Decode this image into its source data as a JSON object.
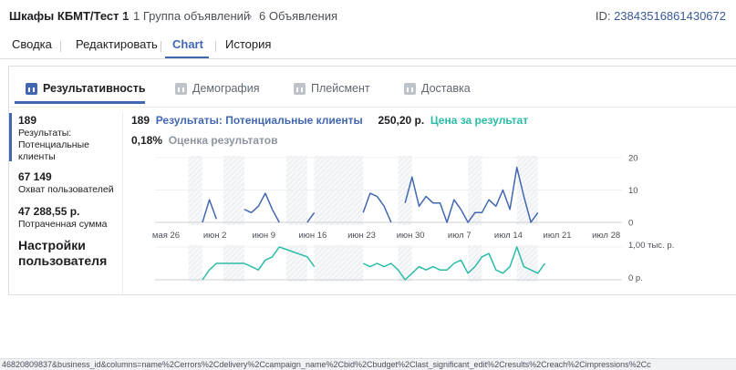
{
  "breadcrumb": {
    "root": "Шкафы КБМТ/Тест 1",
    "items": [
      "1 Группа объявлений",
      "6 Объявления"
    ]
  },
  "id_label": "ID:",
  "id_value": "23843516861430672",
  "tabs": [
    "Сводка",
    "Редактировать",
    "Chart",
    "История"
  ],
  "active_tab": "Chart",
  "subtabs": [
    {
      "label": "Результативность",
      "icon": "bar-chart-icon"
    },
    {
      "label": "Демография",
      "icon": "demography-icon"
    },
    {
      "label": "Плейсмент",
      "icon": "placement-icon"
    },
    {
      "label": "Доставка",
      "icon": "delivery-icon"
    }
  ],
  "metrics": [
    {
      "value": "189",
      "label": "Результаты: Потенциальные клиенты"
    },
    {
      "value": "67 149",
      "label": "Охват пользователей"
    },
    {
      "value": "47 288,55 р.",
      "label": "Потраченная сумма"
    }
  ],
  "settings_label": "Настройки пользователя",
  "legend": {
    "results_value": "189",
    "results_label": "Результаты: Потенциальные клиенты",
    "cost_value": "250,20 р.",
    "cost_label": "Цена за результат",
    "rate_value": "0,18%",
    "rate_label": "Оценка результатов"
  },
  "colors": {
    "blue": "#4267b2",
    "teal": "#2abba7",
    "accent": "#385898"
  },
  "url_text": "46820809837&business_id&columns=name%2Cerrors%2Cdelivery%2Ccampaign_name%2Cbid%2Cbudget%2Clast_significant_edit%2Cresults%2Creach%2Cimpressions%2Cc",
  "chart_data": {
    "type": "line",
    "x_ticks": [
      "мая 26",
      "июн 2",
      "июн 9",
      "июн 16",
      "июн 23",
      "июн 30",
      "июл 7",
      "июл 14",
      "июл 21",
      "июл 28"
    ],
    "y1_ticks": [
      "20",
      "10",
      "0"
    ],
    "y2_ticks": [
      "1,00 тыс. р.",
      "0 р."
    ],
    "days": 66,
    "results_series": [
      null,
      null,
      null,
      null,
      null,
      null,
      0,
      7,
      1,
      null,
      null,
      null,
      4,
      3,
      5,
      9,
      4,
      0,
      null,
      null,
      null,
      0,
      3,
      null,
      null,
      null,
      null,
      null,
      null,
      null,
      null,
      null,
      null,
      null,
      null,
      null,
      null,
      null,
      null,
      null,
      null,
      null,
      null,
      null,
      null,
      null,
      null,
      null,
      null,
      null,
      null,
      null,
      null,
      null,
      null,
      null,
      null,
      null,
      null,
      null,
      null,
      null,
      null,
      null,
      null,
      null
    ],
    "results_series_b": [
      [
        29,
        3
      ],
      [
        30,
        9
      ],
      [
        31,
        8
      ],
      [
        32,
        5
      ],
      [
        33,
        0
      ],
      null,
      [
        35,
        6
      ],
      [
        36,
        14
      ],
      [
        37,
        5
      ],
      [
        38,
        8
      ],
      [
        39,
        6
      ],
      [
        40,
        6
      ],
      [
        41,
        0
      ],
      [
        42,
        7
      ],
      [
        43,
        4
      ],
      [
        44,
        0
      ],
      [
        45,
        3
      ],
      [
        46,
        3
      ],
      [
        47,
        7
      ],
      [
        48,
        5
      ],
      [
        49,
        10
      ],
      [
        50,
        4
      ],
      [
        51,
        17
      ],
      [
        52,
        8
      ],
      [
        53,
        0
      ],
      [
        54,
        3
      ]
    ],
    "cost_series_a": [
      [
        6,
        0
      ],
      [
        7,
        0.3
      ],
      [
        8,
        0.5
      ],
      [
        12,
        0.5
      ],
      [
        13,
        0.4
      ],
      [
        14,
        0.3
      ],
      [
        15,
        0.6
      ],
      [
        16,
        0.7
      ],
      [
        17,
        1.0
      ],
      [
        21,
        0.7
      ],
      [
        22,
        0.4
      ]
    ],
    "cost_series_b": [
      [
        29,
        0.5
      ],
      [
        30,
        0.4
      ],
      [
        31,
        0.5
      ],
      [
        32,
        0.4
      ],
      [
        33,
        0.5
      ],
      [
        34,
        0.3
      ],
      [
        35,
        0.0
      ],
      [
        37,
        0.4
      ],
      [
        38,
        0.3
      ],
      [
        39,
        0.4
      ],
      [
        40,
        0.3
      ],
      [
        41,
        0.3
      ],
      [
        42,
        0.5
      ],
      [
        43,
        0.6
      ],
      [
        44,
        0.2
      ],
      [
        45,
        0.4
      ],
      [
        46,
        0.7
      ],
      [
        47,
        0.8
      ],
      [
        48,
        0.3
      ],
      [
        49,
        0.2
      ],
      [
        50,
        0.4
      ],
      [
        51,
        1.0
      ],
      [
        52,
        0.4
      ],
      [
        53,
        0.3
      ],
      [
        54,
        0.2
      ],
      [
        55,
        0.5
      ]
    ],
    "y1_range": [
      0,
      20
    ],
    "y2_range": [
      0,
      1000
    ]
  }
}
